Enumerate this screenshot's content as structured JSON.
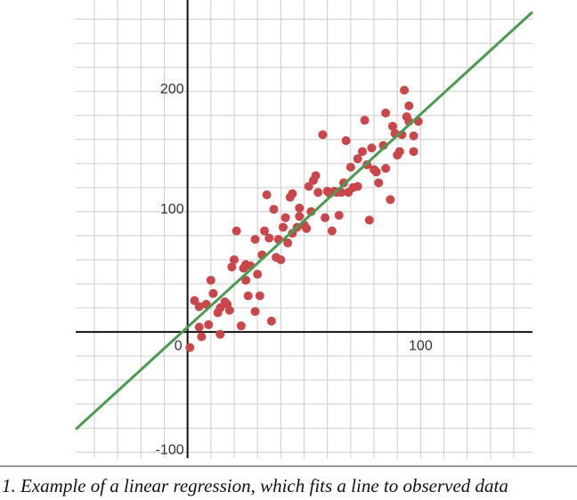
{
  "chart_data": {
    "type": "scatter",
    "caption": "1. Example of a linear regression, which fits a line to observed data",
    "xlim": [
      -48,
      148
    ],
    "ylim": [
      -105,
      276
    ],
    "xticks": [
      0,
      100
    ],
    "yticks": [
      -100,
      100,
      200
    ],
    "grid": true,
    "xgrid": [
      -40,
      -30,
      -20,
      -10,
      10,
      20,
      30,
      40,
      50,
      60,
      70,
      80,
      90,
      100,
      110,
      120,
      130,
      140
    ],
    "ygrid": [
      -100,
      -80,
      -60,
      -40,
      -20,
      20,
      40,
      60,
      80,
      100,
      120,
      140,
      160,
      180,
      200,
      220,
      240,
      260
    ],
    "color": "#c9474a",
    "x": [
      1,
      3,
      5,
      5,
      6,
      8,
      9,
      10,
      11,
      13,
      14,
      14,
      16,
      17,
      18,
      19,
      20,
      21,
      23,
      24,
      25,
      25,
      26,
      27,
      29,
      29,
      30,
      31,
      32,
      33,
      34,
      35,
      36,
      37,
      38,
      39,
      40,
      41,
      42,
      43,
      44,
      45,
      45,
      47,
      48,
      48,
      50,
      51,
      52,
      53,
      54,
      55,
      56,
      58,
      59,
      60,
      61,
      62,
      63,
      64,
      65,
      66,
      67,
      68,
      69,
      70,
      71,
      73,
      73,
      75,
      76,
      77,
      78,
      79,
      80,
      81,
      82,
      84,
      85,
      85,
      87,
      88,
      89,
      90,
      91,
      92,
      93,
      94,
      95,
      95,
      97,
      97,
      99
    ],
    "values": [
      -13,
      26,
      21,
      4,
      -4,
      23,
      6,
      43,
      32,
      16,
      -2,
      20,
      25,
      23,
      18,
      54,
      60,
      84,
      5,
      53,
      56,
      43,
      30,
      55,
      17,
      77,
      48,
      30,
      64,
      84,
      114,
      78,
      9,
      102,
      62,
      77,
      60,
      87,
      95,
      74,
      112,
      82,
      115,
      87,
      103,
      96,
      89,
      86,
      121,
      100,
      126,
      130,
      116,
      164,
      95,
      117,
      115,
      84,
      117,
      116,
      97,
      116,
      124,
      159,
      116,
      137,
      120,
      121,
      144,
      150,
      176,
      139,
      93,
      153,
      135,
      133,
      124,
      155,
      136,
      182,
      110,
      171,
      165,
      147,
      150,
      164,
      201,
      179,
      188,
      175,
      163,
      150,
      175
    ],
    "fit_line": {
      "color": "#4a9a4f",
      "x": [
        -48,
        148
      ],
      "y": [
        -81,
        266
      ]
    }
  }
}
